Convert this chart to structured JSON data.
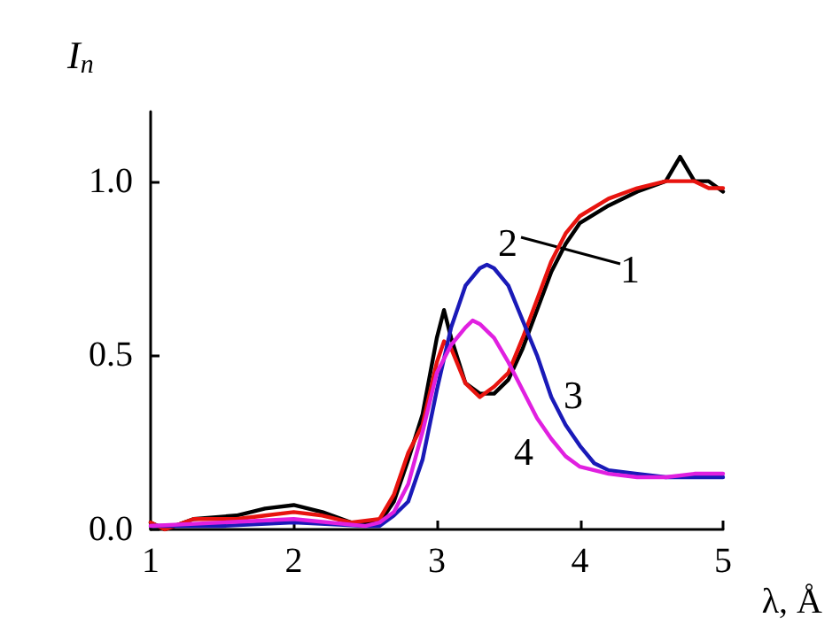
{
  "chart_data": {
    "type": "line",
    "xlabel": "λ, Å",
    "ylabel": "I$_{n}$",
    "xlim": [
      1,
      5
    ],
    "xticks": [
      1,
      2,
      3,
      4,
      5
    ],
    "ylim": [
      0,
      1.2
    ],
    "yticks": [
      {
        "value": 0,
        "label": "0.0"
      },
      {
        "value": 0.5,
        "label": "0.5"
      },
      {
        "value": 1,
        "label": "1.0"
      }
    ],
    "grid": false,
    "marker": "none",
    "line_style": "solid",
    "annotations": [
      "2",
      "1",
      "3",
      "4"
    ],
    "series": [
      {
        "color": "#000000",
        "x": [
          1.0,
          1.1,
          1.3,
          1.6,
          1.8,
          2.0,
          2.2,
          2.4,
          2.6,
          2.7,
          2.8,
          2.9,
          3.0,
          3.05,
          3.1,
          3.2,
          3.3,
          3.4,
          3.5,
          3.6,
          3.7,
          3.8,
          3.9,
          4.0,
          4.2,
          4.4,
          4.6,
          4.7,
          4.8,
          4.9,
          5.0
        ],
        "values": [
          0.02,
          0.0,
          0.03,
          0.04,
          0.06,
          0.07,
          0.05,
          0.02,
          0.02,
          0.08,
          0.2,
          0.33,
          0.55,
          0.63,
          0.55,
          0.42,
          0.39,
          0.39,
          0.43,
          0.52,
          0.63,
          0.74,
          0.82,
          0.88,
          0.93,
          0.97,
          1.0,
          1.07,
          1.0,
          1.0,
          0.97
        ]
      },
      {
        "color": "#e8140f",
        "x": [
          1.0,
          1.1,
          1.3,
          1.6,
          1.8,
          2.0,
          2.2,
          2.4,
          2.6,
          2.7,
          2.8,
          2.9,
          3.0,
          3.05,
          3.1,
          3.2,
          3.3,
          3.4,
          3.5,
          3.6,
          3.7,
          3.8,
          3.9,
          4.0,
          4.2,
          4.4,
          4.6,
          4.8,
          4.9,
          5.0
        ],
        "values": [
          0.02,
          0.0,
          0.03,
          0.03,
          0.04,
          0.05,
          0.04,
          0.02,
          0.03,
          0.1,
          0.22,
          0.3,
          0.48,
          0.54,
          0.52,
          0.42,
          0.38,
          0.41,
          0.45,
          0.55,
          0.66,
          0.77,
          0.85,
          0.9,
          0.95,
          0.98,
          1.0,
          1.0,
          0.98,
          0.98
        ]
      },
      {
        "color": "#1a1ab8",
        "x": [
          1.0,
          1.5,
          2.0,
          2.5,
          2.6,
          2.7,
          2.8,
          2.9,
          3.0,
          3.1,
          3.2,
          3.3,
          3.35,
          3.4,
          3.5,
          3.6,
          3.7,
          3.8,
          3.9,
          4.0,
          4.1,
          4.2,
          4.4,
          4.6,
          4.8,
          5.0
        ],
        "values": [
          0.01,
          0.01,
          0.02,
          0.01,
          0.01,
          0.04,
          0.08,
          0.2,
          0.4,
          0.58,
          0.7,
          0.75,
          0.76,
          0.75,
          0.7,
          0.6,
          0.5,
          0.38,
          0.3,
          0.24,
          0.19,
          0.17,
          0.16,
          0.15,
          0.15,
          0.15
        ]
      },
      {
        "color": "#e020e0",
        "x": [
          1.0,
          1.5,
          2.0,
          2.5,
          2.6,
          2.7,
          2.8,
          2.9,
          3.0,
          3.1,
          3.2,
          3.25,
          3.3,
          3.4,
          3.5,
          3.6,
          3.7,
          3.8,
          3.9,
          4.0,
          4.2,
          4.4,
          4.6,
          4.8,
          5.0
        ],
        "values": [
          0.01,
          0.02,
          0.03,
          0.01,
          0.02,
          0.05,
          0.13,
          0.28,
          0.45,
          0.53,
          0.58,
          0.6,
          0.59,
          0.55,
          0.48,
          0.4,
          0.32,
          0.26,
          0.21,
          0.18,
          0.16,
          0.15,
          0.15,
          0.16,
          0.16
        ]
      }
    ]
  }
}
